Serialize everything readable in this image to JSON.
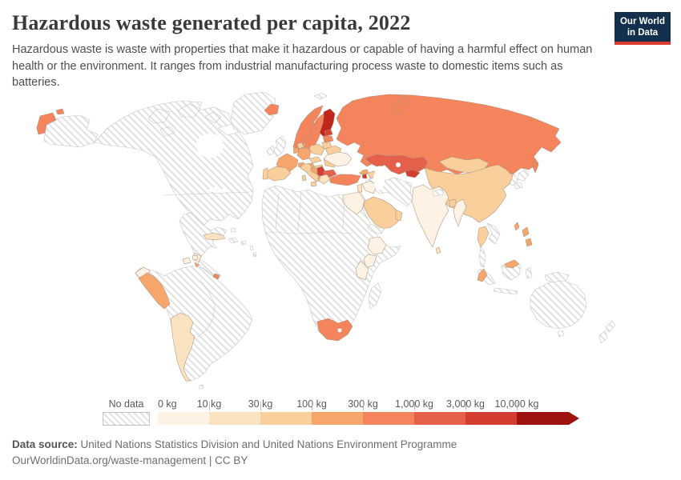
{
  "header": {
    "title": "Hazardous waste generated per capita, 2022",
    "subtitle": "Hazardous waste is waste with properties that make it hazardous or capable of having a harmful effect on human health or the environment. It ranges from industrial manufacturing process waste to domestic items such as batteries.",
    "logo": {
      "line1": "Our World",
      "line2": "in Data",
      "bg_color": "#12304e",
      "stripe_color": "#dc3a31"
    }
  },
  "legend": {
    "no_data_label": "No data",
    "unit_labels": [
      "0 kg",
      "10 kg",
      "30 kg",
      "100 kg",
      "300 kg",
      "1,000 kg",
      "3,000 kg",
      "10,000 kg"
    ],
    "bin_colors": [
      "#fdf2e3",
      "#fbe2c0",
      "#f9cf9b",
      "#f6a66a",
      "#f4845c",
      "#e4604a",
      "#d43d32",
      "#9e1310"
    ]
  },
  "palette": {
    "bin1": "#fdf2e3",
    "bin2": "#fbe2c0",
    "bin3": "#f9cf9b",
    "bin4": "#f6a66a",
    "bin5": "#f4845c",
    "bin6": "#e4604a",
    "bin7": "#d43d32",
    "bin7b": "#c1261d",
    "bin8": "#9e1310",
    "estonia": "#d8402f",
    "no_data_hatch_line": "#dcdcdc"
  },
  "footer": {
    "source_label": "Data source:",
    "source_text": " United Nations Statistics Division and United Nations Environment Programme",
    "credit_line": "OurWorldinData.org/waste-management | CC BY"
  },
  "chart_data": {
    "type": "choropleth_map",
    "title": "Hazardous waste generated per capita, 2022",
    "unit": "kg per capita",
    "bin_edges_kg": [
      0,
      10,
      30,
      100,
      300,
      1000,
      3000,
      10000
    ],
    "bin_colors": [
      "#fdf2e3",
      "#fbe2c0",
      "#f9cf9b",
      "#f6a66a",
      "#f4845c",
      "#e4604a",
      "#d43d32",
      "#9e1310"
    ],
    "no_data_style": "gray diagonal hatching",
    "values_by_bin": {
      "0-10 kg": [
        "India",
        "Ukraine",
        "Myanmar",
        "Egypt",
        "Ethiopia",
        "Kenya",
        "Tanzania",
        "Ecuador",
        "Guatemala",
        "Iraq",
        "Trinidad and Tobago"
      ],
      "10-30 kg": [
        "Argentina",
        "Greece",
        "Cuba",
        "Israel",
        "Sri Lanka"
      ],
      "30-100 kg": [
        "China",
        "Mongolia",
        "Spain",
        "Portugal",
        "Italy",
        "Poland",
        "Belarus",
        "Lithuania",
        "Czechia",
        "Hungary",
        "Romania",
        "Saudi Arabia",
        "Oman",
        "Thailand",
        "Bangladesh",
        "Denmark",
        "Azerbaijan"
      ],
      "100-300 kg": [
        "France",
        "Germany",
        "Netherlands",
        "Switzerland",
        "Austria",
        "Croatia",
        "Georgia",
        "Peru",
        "Malaysia",
        "Taiwan",
        "Philippines",
        "El Salvador"
      ],
      "300-1,000 kg": [
        "Russia",
        "Norway",
        "Sweden",
        "Latvia",
        "Iceland",
        "Turkey",
        "South Africa",
        "Panama"
      ],
      "1,000-3,000 kg": [
        "Kazakhstan",
        "Bulgaria"
      ],
      "3,000-10,000 kg": [
        "Serbia",
        "Estonia",
        "Armenia",
        "Uzbekistan",
        "Finland"
      ],
      "10,000+ kg": [],
      "no_data": [
        "United States",
        "Canada",
        "Greenland",
        "Mexico",
        "Brazil",
        "Colombia",
        "Venezuela",
        "Chile",
        "Bolivia",
        "most of Africa",
        "Iran",
        "Pakistan",
        "Afghanistan",
        "Australia",
        "New Zealand",
        "Indonesia",
        "Japan",
        "South Korea",
        "Vietnam",
        "United Kingdom",
        "Ireland",
        "Madagascar",
        "Saharan Africa",
        "Papua New Guinea"
      ]
    }
  }
}
